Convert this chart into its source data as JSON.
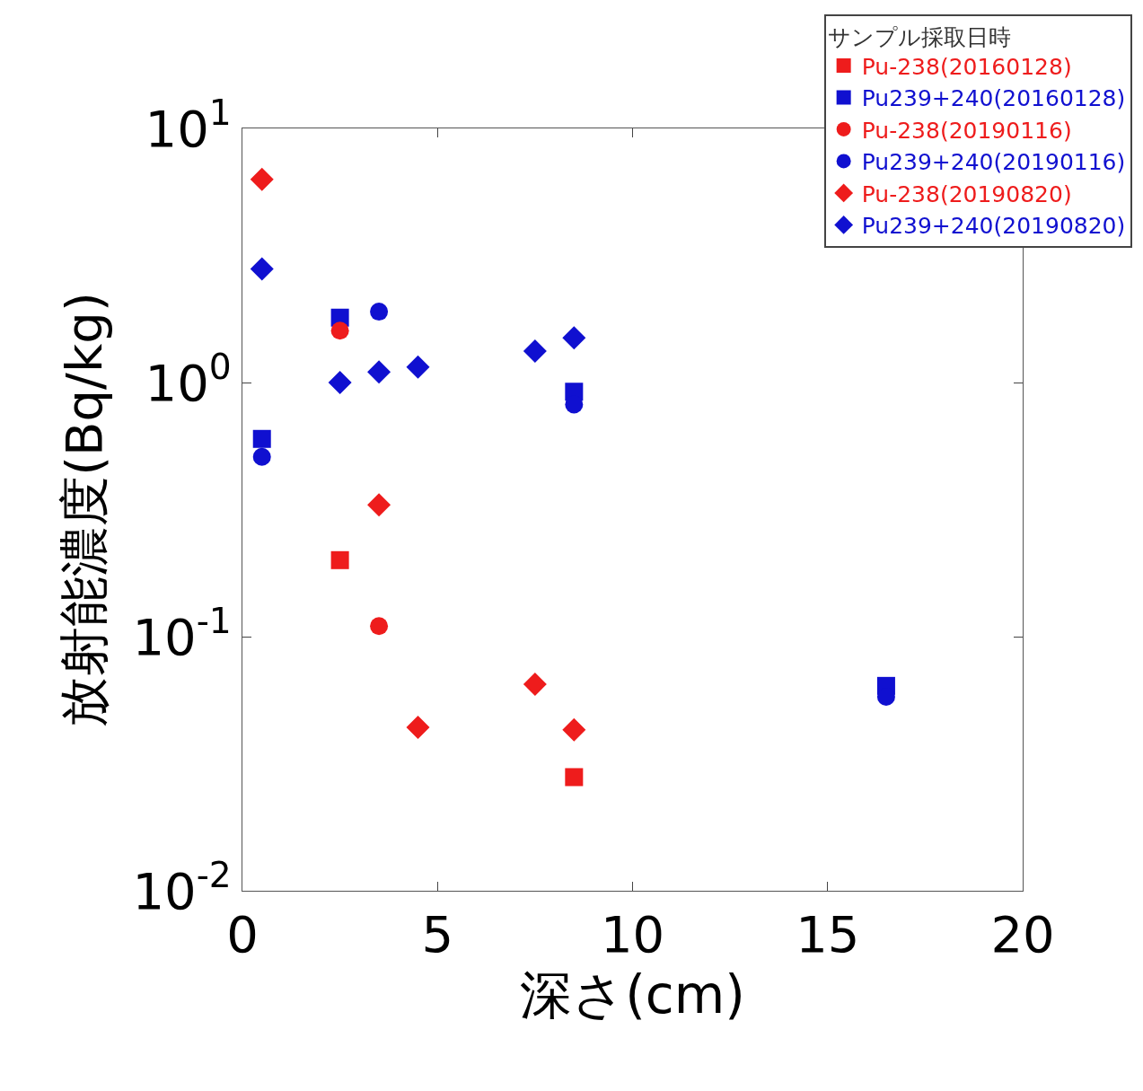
{
  "chart_data": {
    "type": "scatter",
    "xlabel": "深さ(cm)",
    "ylabel": "放射能濃度(Bq/kg)",
    "legend_title": "サンプル採取日時",
    "log": "y",
    "xlim": [
      0,
      20
    ],
    "xticks": [
      0,
      5,
      10,
      15,
      20
    ],
    "ylim": [
      0.01,
      10
    ],
    "yticks": [
      {
        "value": 10,
        "label": "10$^{1}$"
      },
      {
        "value": 1,
        "label": "10$^{0}$"
      },
      {
        "value": 0.1,
        "label": "10$^{-1}$"
      },
      {
        "value": 0.01,
        "label": "10$^{-2}$"
      }
    ],
    "legend": "top right",
    "series": [
      {
        "name": "Pu-238(20160128)",
        "color": "#ee1c1c",
        "marker": "square",
        "x": [
          2.5,
          8.5
        ],
        "values": [
          0.2,
          0.028
        ]
      },
      {
        "name": "Pu239+240(20160128)",
        "color": "#1010d0",
        "marker": "square",
        "x": [
          0.5,
          2.5,
          8.5,
          16.5
        ],
        "values": [
          0.6,
          1.8,
          0.92,
          0.064
        ]
      },
      {
        "name": "Pu-238(20190116)",
        "color": "#ee1c1c",
        "marker": "circle",
        "x": [
          2.5,
          3.5
        ],
        "values": [
          1.6,
          0.11
        ]
      },
      {
        "name": "Pu239+240(20190116)",
        "color": "#1010d0",
        "marker": "circle",
        "x": [
          0.5,
          3.5,
          8.5,
          16.5
        ],
        "values": [
          0.51,
          1.9,
          0.82,
          0.058
        ]
      },
      {
        "name": "Pu-238(20190820)",
        "color": "#ee1c1c",
        "marker": "diamond",
        "x": [
          0.5,
          3.5,
          4.5,
          7.5,
          8.5
        ],
        "values": [
          6.3,
          0.33,
          0.044,
          0.065,
          0.043
        ]
      },
      {
        "name": "Pu239+240(20190820)",
        "color": "#1010d0",
        "marker": "diamond",
        "x": [
          0.5,
          2.5,
          3.5,
          4.5,
          7.5,
          8.5
        ],
        "values": [
          2.8,
          1.0,
          1.1,
          1.15,
          1.33,
          1.5
        ]
      }
    ]
  }
}
